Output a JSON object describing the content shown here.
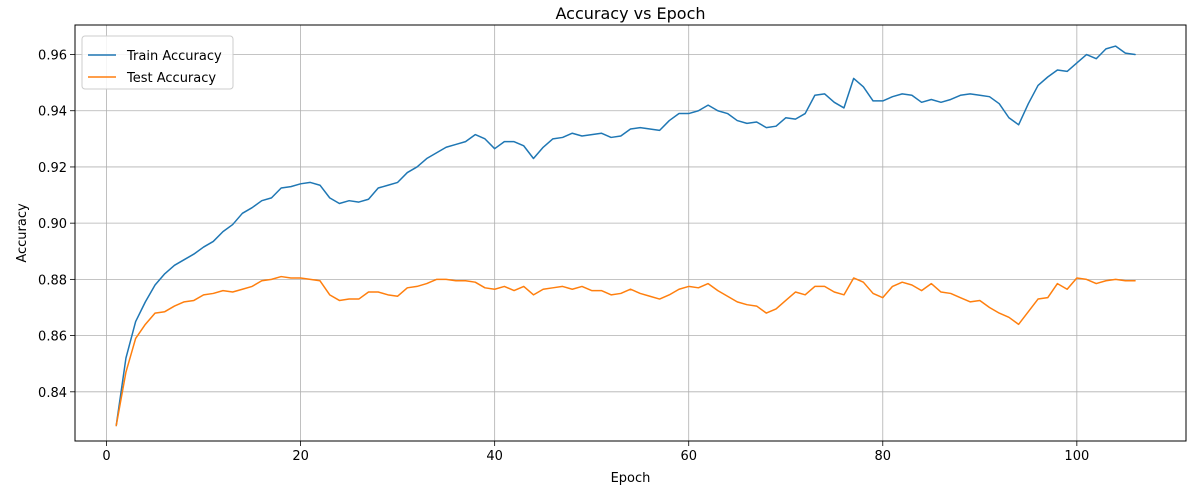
{
  "chart_data": {
    "type": "line",
    "title": "Accuracy vs Epoch",
    "xlabel": "Epoch",
    "ylabel": "Accuracy",
    "xlim": [
      -3.25,
      111.25
    ],
    "ylim": [
      0.8225,
      0.9705
    ],
    "x_ticks": [
      0,
      20,
      40,
      60,
      80,
      100
    ],
    "y_ticks": [
      0.84,
      0.86,
      0.88,
      0.9,
      0.92,
      0.94,
      0.96
    ],
    "x_tick_labels": [
      "0",
      "20",
      "40",
      "60",
      "80",
      "100"
    ],
    "y_tick_labels": [
      "0.84",
      "0.86",
      "0.88",
      "0.90",
      "0.92",
      "0.94",
      "0.96"
    ],
    "grid": true,
    "legend_position": "top-left",
    "x": [
      1,
      2,
      3,
      4,
      5,
      6,
      7,
      8,
      9,
      10,
      11,
      12,
      13,
      14,
      15,
      16,
      17,
      18,
      19,
      20,
      21,
      22,
      23,
      24,
      25,
      26,
      27,
      28,
      29,
      30,
      31,
      32,
      33,
      34,
      35,
      36,
      37,
      38,
      39,
      40,
      41,
      42,
      43,
      44,
      45,
      46,
      47,
      48,
      49,
      50,
      51,
      52,
      53,
      54,
      55,
      56,
      57,
      58,
      59,
      60,
      61,
      62,
      63,
      64,
      65,
      66,
      67,
      68,
      69,
      70,
      71,
      72,
      73,
      74,
      75,
      76,
      77,
      78,
      79,
      80,
      81,
      82,
      83,
      84,
      85,
      86,
      87,
      88,
      89,
      90,
      91,
      92,
      93,
      94,
      95,
      96,
      97,
      98,
      99,
      100,
      101,
      102,
      103,
      104,
      105,
      106
    ],
    "series": [
      {
        "name": "Train Accuracy",
        "color": "#1f77b4",
        "values": [
          0.828,
          0.852,
          0.865,
          0.872,
          0.878,
          0.882,
          0.885,
          0.887,
          0.889,
          0.8915,
          0.8935,
          0.897,
          0.8995,
          0.9035,
          0.9055,
          0.908,
          0.909,
          0.9125,
          0.913,
          0.914,
          0.9145,
          0.9135,
          0.909,
          0.907,
          0.908,
          0.9075,
          0.9085,
          0.9125,
          0.9135,
          0.9145,
          0.918,
          0.92,
          0.923,
          0.925,
          0.927,
          0.928,
          0.929,
          0.9315,
          0.93,
          0.9265,
          0.929,
          0.929,
          0.9275,
          0.923,
          0.927,
          0.93,
          0.9305,
          0.932,
          0.931,
          0.9315,
          0.932,
          0.9305,
          0.931,
          0.9335,
          0.934,
          0.9335,
          0.933,
          0.9365,
          0.939,
          0.939,
          0.94,
          0.942,
          0.94,
          0.939,
          0.9365,
          0.9355,
          0.936,
          0.934,
          0.9345,
          0.9375,
          0.937,
          0.939,
          0.9455,
          0.946,
          0.943,
          0.941,
          0.9515,
          0.9485,
          0.9435,
          0.9435,
          0.945,
          0.946,
          0.9455,
          0.943,
          0.944,
          0.943,
          0.944,
          0.9455,
          0.946,
          0.9455,
          0.945,
          0.9425,
          0.9375,
          0.935,
          0.9425,
          0.949,
          0.952,
          0.9545,
          0.954,
          0.957,
          0.96,
          0.9585,
          0.962,
          0.963,
          0.9605,
          0.96
        ]
      },
      {
        "name": "Test Accuracy",
        "color": "#ff7f0e",
        "values": [
          0.828,
          0.847,
          0.859,
          0.864,
          0.868,
          0.8685,
          0.8705,
          0.872,
          0.8725,
          0.8745,
          0.875,
          0.876,
          0.8755,
          0.8765,
          0.8775,
          0.8795,
          0.88,
          0.881,
          0.8805,
          0.8805,
          0.88,
          0.8795,
          0.8745,
          0.8725,
          0.873,
          0.873,
          0.8755,
          0.8755,
          0.8745,
          0.874,
          0.877,
          0.8775,
          0.8785,
          0.88,
          0.88,
          0.8795,
          0.8795,
          0.879,
          0.877,
          0.8765,
          0.8775,
          0.876,
          0.8775,
          0.8745,
          0.8765,
          0.877,
          0.8775,
          0.8765,
          0.8775,
          0.876,
          0.876,
          0.8745,
          0.875,
          0.8765,
          0.875,
          0.874,
          0.873,
          0.8745,
          0.8765,
          0.8775,
          0.877,
          0.8785,
          0.876,
          0.874,
          0.872,
          0.871,
          0.8705,
          0.868,
          0.8695,
          0.8725,
          0.8755,
          0.8745,
          0.8775,
          0.8775,
          0.8755,
          0.8745,
          0.8805,
          0.879,
          0.875,
          0.8735,
          0.8775,
          0.879,
          0.878,
          0.876,
          0.8785,
          0.8755,
          0.875,
          0.8735,
          0.872,
          0.8725,
          0.87,
          0.868,
          0.8665,
          0.864,
          0.8685,
          0.873,
          0.8735,
          0.8785,
          0.8765,
          0.8805,
          0.88,
          0.8785,
          0.8795,
          0.88,
          0.8795,
          0.8795
        ]
      }
    ]
  }
}
